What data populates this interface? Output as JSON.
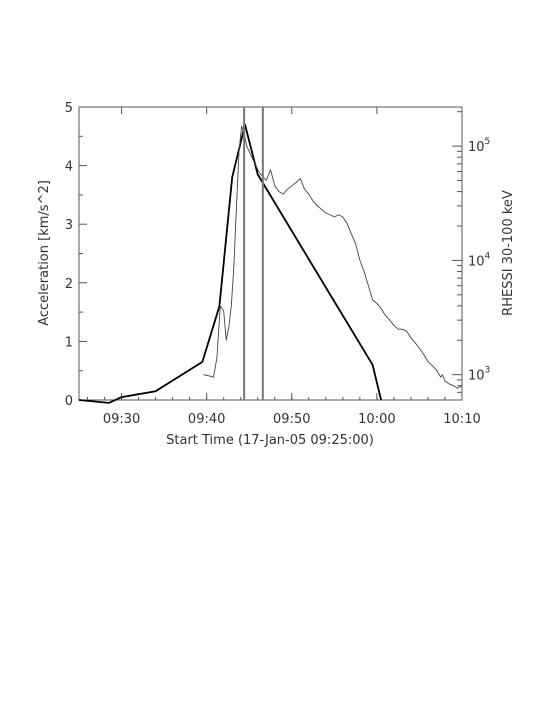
{
  "chart_data": {
    "type": "line",
    "xlabel": "Start Time (17-Jan-05 09:25:00)",
    "ylabel": "Acceleration [km/s^2]",
    "y2label": "RHESSI 30-100 keV",
    "x_ticks": [
      "09:30",
      "09:40",
      "09:50",
      "10:00",
      "10:10"
    ],
    "x_tick_minutes": [
      5,
      15,
      25,
      35,
      45
    ],
    "xlim_minutes": [
      0,
      45
    ],
    "ylim": [
      0,
      5
    ],
    "y_ticks": [
      "0",
      "1",
      "2",
      "3",
      "4",
      "5"
    ],
    "y2lim": [
      600,
      220000
    ],
    "y2_scale": "log",
    "y2_ticks": [
      {
        "value": 1000,
        "base": "10",
        "exp": "3"
      },
      {
        "value": 10000,
        "base": "10",
        "exp": "4"
      },
      {
        "value": 100000,
        "base": "10",
        "exp": "5"
      }
    ],
    "series": [
      {
        "axis": "left",
        "style": "thick",
        "x_minutes": [
          0,
          3.5,
          5,
          9,
          14.5,
          16.5,
          18,
          19.5,
          21,
          29.5,
          34.5,
          35.5
        ],
        "values": [
          0.0,
          -0.05,
          0.05,
          0.15,
          0.65,
          1.6,
          3.8,
          4.7,
          3.85,
          1.8,
          0.6,
          0.0
        ]
      },
      {
        "axis": "right",
        "style": "thin",
        "x_minutes": [
          14.6,
          15.2,
          15.8,
          16.2,
          16.6,
          17.0,
          17.3,
          17.6,
          17.9,
          18.2,
          18.5,
          18.8,
          19.1,
          19.4,
          19.7,
          20.0,
          20.3,
          20.7,
          21.1,
          21.5,
          22.0,
          22.5,
          23.0,
          23.5,
          24.0,
          24.5,
          25.0,
          25.5,
          26.0,
          26.5,
          27.0,
          27.5,
          28.0,
          28.5,
          29.0,
          29.5,
          30.0,
          30.5,
          31.0,
          31.5,
          32.0,
          32.5,
          33.0,
          33.5,
          34.0,
          34.5,
          35.0,
          35.5,
          36.0,
          36.5,
          37.0,
          37.5,
          38.0,
          38.5,
          39.0,
          39.5,
          40.0,
          40.5,
          41.0,
          41.5,
          42.0,
          42.5,
          42.7,
          43.0,
          43.5,
          44.0,
          44.5,
          45.0
        ],
        "values": [
          1000,
          980,
          950,
          1400,
          4000,
          3600,
          2000,
          2600,
          4000,
          9000,
          30000,
          90000,
          150000,
          130000,
          100000,
          90000,
          80000,
          70000,
          60000,
          55000,
          50000,
          62000,
          45000,
          40000,
          38000,
          42000,
          45000,
          48000,
          52000,
          42000,
          38000,
          33000,
          30000,
          28000,
          26000,
          25000,
          24000,
          25000,
          24000,
          21000,
          17000,
          14000,
          10000,
          8000,
          6000,
          4500,
          4200,
          3800,
          3300,
          3000,
          2700,
          2500,
          2500,
          2400,
          2100,
          1900,
          1700,
          1500,
          1300,
          1200,
          1100,
          950,
          1000,
          880,
          830,
          800,
          760,
          800
        ]
      }
    ],
    "vertical_lines_minutes": [
      19.4,
      21.6
    ]
  }
}
